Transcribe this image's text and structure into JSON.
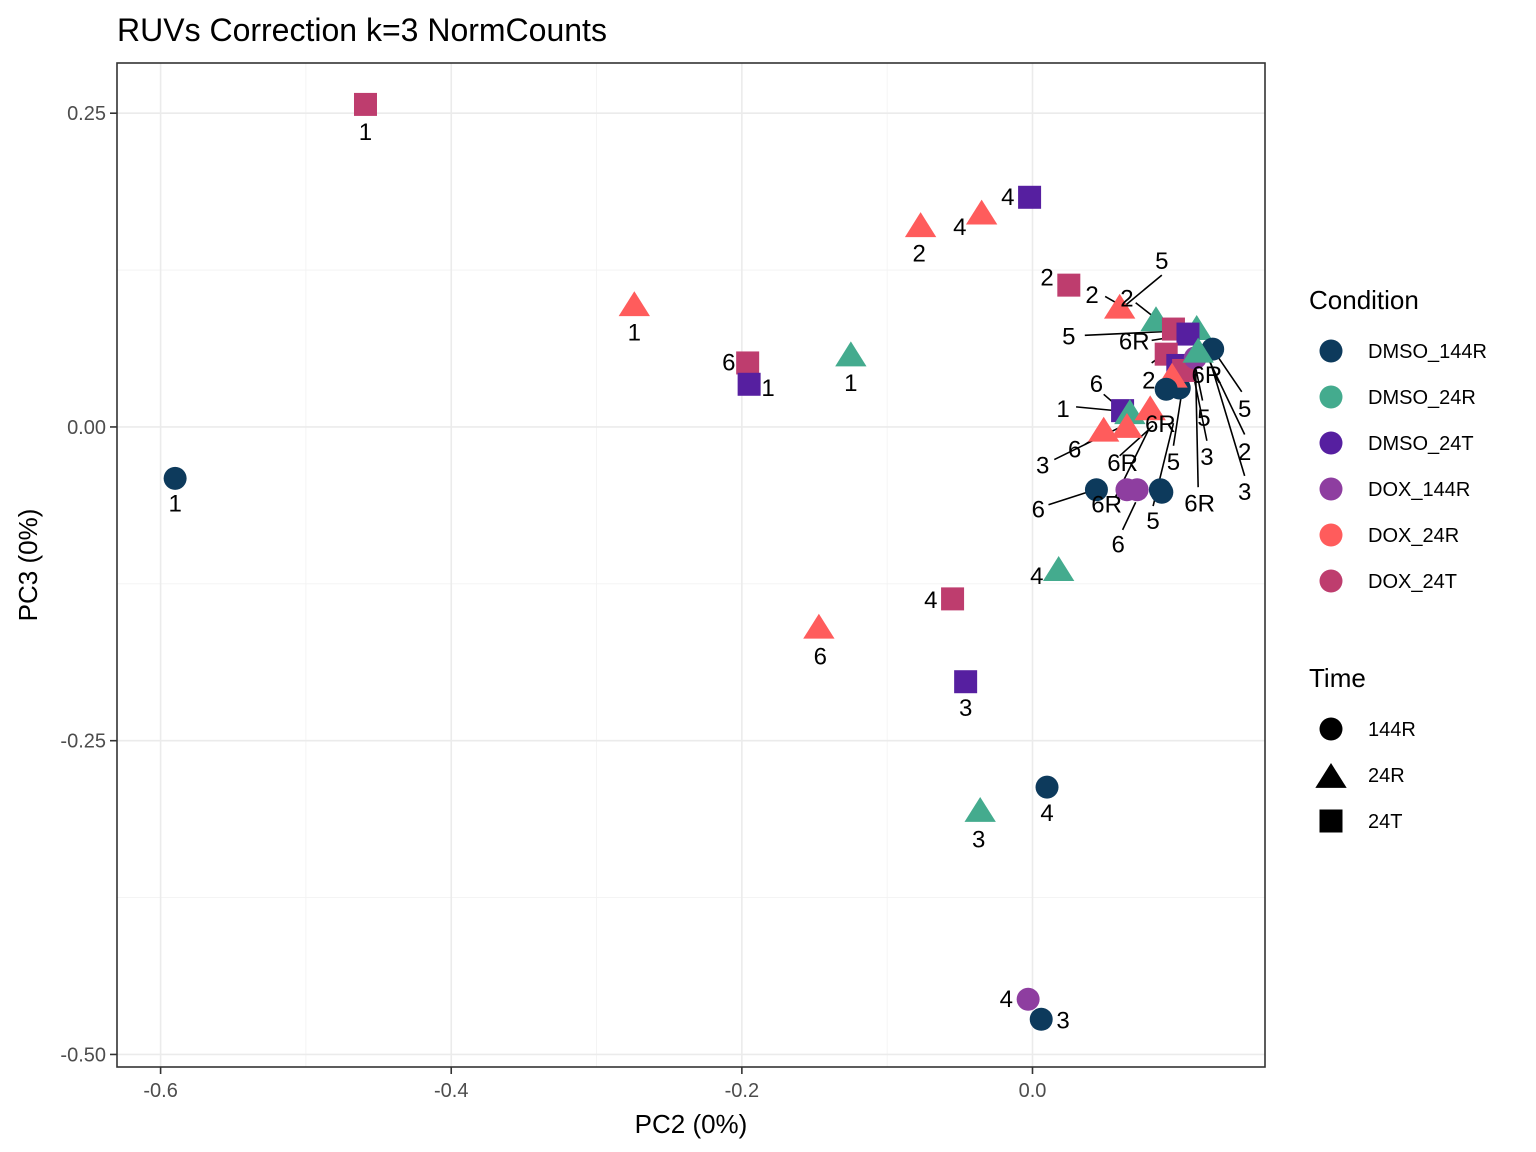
{
  "chart_data": {
    "type": "scatter",
    "title": "RUVs Correction k=3 NormCounts",
    "xlabel": "PC2 (0%)",
    "ylabel": "PC3 (0%)",
    "xlim": [
      -0.63,
      0.16
    ],
    "ylim": [
      -0.51,
      0.29
    ],
    "x_ticks": [
      -0.6,
      -0.4,
      -0.2,
      0.0
    ],
    "x_tick_labels": [
      "-0.6",
      "-0.4",
      "-0.2",
      "0.0"
    ],
    "y_ticks": [
      0.25,
      0.0,
      -0.25,
      -0.5
    ],
    "y_tick_labels": [
      "0.25",
      "0.00",
      "-0.25",
      "-0.50"
    ],
    "grid": true,
    "legend_position": "right",
    "colors": {
      "DMSO_144R": "#0d3a5c",
      "DMSO_24R": "#44ab8e",
      "DMSO_24T": "#561fa0",
      "DOX_144R": "#8e3ea0",
      "DOX_24R": "#ff5c5c",
      "DOX_24T": "#be3d6e"
    },
    "legend_condition": {
      "title": "Condition",
      "items": [
        "DMSO_144R",
        "DMSO_24R",
        "DMSO_24T",
        "DOX_144R",
        "DOX_24R",
        "DOX_24T"
      ]
    },
    "legend_time": {
      "title": "Time",
      "items": [
        {
          "label": "144R",
          "shape": "circle"
        },
        {
          "label": "24R",
          "shape": "triangle"
        },
        {
          "label": "24T",
          "shape": "square"
        }
      ]
    },
    "points": [
      {
        "x": -0.59,
        "y": -0.041,
        "condition": "DMSO_144R",
        "shape": "circle",
        "label": "1",
        "lx": -0.59,
        "ly": -0.06
      },
      {
        "x": -0.459,
        "y": 0.257,
        "condition": "DOX_24T",
        "shape": "square",
        "label": "1",
        "lx": -0.459,
        "ly": 0.236
      },
      {
        "x": -0.274,
        "y": 0.097,
        "condition": "DOX_24R",
        "shape": "triangle",
        "label": "1",
        "lx": -0.274,
        "ly": 0.076
      },
      {
        "x": -0.196,
        "y": 0.051,
        "condition": "DOX_24T",
        "shape": "square",
        "label": "6",
        "lx": -0.209,
        "ly": 0.052
      },
      {
        "x": -0.195,
        "y": 0.034,
        "condition": "DMSO_24T",
        "shape": "square",
        "label": "1",
        "lx": -0.182,
        "ly": 0.032
      },
      {
        "x": -0.125,
        "y": 0.057,
        "condition": "DMSO_24R",
        "shape": "triangle",
        "label": "1",
        "lx": -0.125,
        "ly": 0.036
      },
      {
        "x": -0.077,
        "y": 0.16,
        "condition": "DOX_24R",
        "shape": "triangle",
        "label": "2",
        "lx": -0.078,
        "ly": 0.139
      },
      {
        "x": -0.035,
        "y": 0.17,
        "condition": "DOX_24R",
        "shape": "triangle",
        "label": "4",
        "lx": -0.05,
        "ly": 0.16
      },
      {
        "x": -0.002,
        "y": 0.183,
        "condition": "DMSO_24T",
        "shape": "square",
        "label": "4",
        "lx": -0.017,
        "ly": 0.184
      },
      {
        "x": 0.025,
        "y": 0.113,
        "condition": "DOX_24T",
        "shape": "square",
        "label": "2",
        "lx": 0.01,
        "ly": 0.12
      },
      {
        "x": 0.06,
        "y": 0.095,
        "condition": "DOX_24R",
        "shape": "triangle",
        "label": "2",
        "lx": 0.041,
        "ly": 0.106,
        "line": [
          0.05,
          0.104,
          0.059,
          0.098
        ]
      },
      {
        "x": 0.085,
        "y": 0.085,
        "condition": "DMSO_24R",
        "shape": "triangle",
        "label": "2",
        "lx": 0.065,
        "ly": 0.103,
        "line": [
          0.071,
          0.099,
          0.082,
          0.089
        ]
      },
      {
        "x": 0.097,
        "y": 0.078,
        "condition": "DOX_24T",
        "shape": "square",
        "label": "5",
        "lx": 0.089,
        "ly": 0.133,
        "line": [
          0.089,
          0.121,
          0.064,
          0.097
        ]
      },
      {
        "x": 0.113,
        "y": 0.078,
        "condition": "DMSO_24R",
        "shape": "triangle",
        "label": "5",
        "lx": 0.025,
        "ly": 0.073,
        "line": [
          0.036,
          0.073,
          0.11,
          0.077
        ]
      },
      {
        "x": 0.107,
        "y": 0.074,
        "condition": "DMSO_24T",
        "shape": "square",
        "label": "6R",
        "lx": 0.07,
        "ly": 0.069,
        "line": [
          0.082,
          0.069,
          0.104,
          0.073
        ]
      },
      {
        "x": 0.092,
        "y": 0.058,
        "condition": "DOX_24T",
        "shape": "square",
        "label": "2",
        "lx": 0.08,
        "ly": 0.038,
        "line": [
          0.082,
          0.051,
          0.094,
          0.061
        ]
      },
      {
        "x": 0.1,
        "y": 0.049,
        "condition": "DMSO_24T",
        "shape": "square",
        "label": "6R",
        "lx": 0.12,
        "ly": 0.042,
        "line": [
          0.112,
          0.045,
          0.102,
          0.049
        ]
      },
      {
        "x": 0.124,
        "y": 0.062,
        "condition": "DMSO_144R",
        "shape": "circle",
        "label": "5",
        "lx": 0.146,
        "ly": 0.015,
        "line": [
          0.144,
          0.028,
          0.124,
          0.062
        ]
      },
      {
        "x": 0.101,
        "y": 0.031,
        "condition": "DMSO_144R",
        "shape": "circle",
        "label": "5",
        "lx": 0.118,
        "ly": 0.008,
        "line": [
          0.117,
          0.021,
          0.11,
          0.06
        ]
      },
      {
        "x": 0.062,
        "y": 0.013,
        "condition": "DMSO_24T",
        "shape": "square",
        "label": "6",
        "lx": 0.044,
        "ly": 0.035,
        "line": [
          0.049,
          0.026,
          0.061,
          0.014
        ]
      },
      {
        "x": 0.067,
        "y": 0.011,
        "condition": "DMSO_24R",
        "shape": "triangle",
        "label": "1",
        "lx": 0.021,
        "ly": 0.015,
        "line": [
          0.03,
          0.016,
          0.066,
          0.012
        ]
      },
      {
        "x": 0.081,
        "y": 0.014,
        "condition": "DOX_24R",
        "shape": "triangle",
        "label": "6R",
        "lx": 0.088,
        "ly": 0.003,
        "line": [
          0.084,
          0.008,
          0.081,
          0.012
        ]
      },
      {
        "x": 0.049,
        "y": -0.003,
        "condition": "DOX_24R",
        "shape": "triangle",
        "label": "6",
        "lx": 0.029,
        "ly": -0.017,
        "line": [
          0.036,
          -0.014,
          0.048,
          -0.005
        ]
      },
      {
        "x": 0.065,
        "y": -0.05,
        "condition": "DOX_144R",
        "shape": "circle",
        "label": "6R",
        "lx": 0.062,
        "ly": -0.028,
        "line": [
          0.06,
          -0.023,
          0.083,
          0.001
        ]
      },
      {
        "x": 0.065,
        "y": 0.0,
        "condition": "DOX_24R",
        "shape": "triangle",
        "label": "3",
        "lx": 0.007,
        "ly": -0.03,
        "line": [
          0.015,
          -0.026,
          0.066,
          0.003
        ]
      },
      {
        "x": 0.104,
        "y": 0.045,
        "condition": "DOX_24T",
        "shape": "square",
        "label": "3",
        "lx": 0.12,
        "ly": -0.023,
        "line": [
          0.12,
          -0.011,
          0.108,
          0.057
        ]
      },
      {
        "x": 0.112,
        "y": 0.055,
        "condition": "DOX_144R",
        "shape": "circle",
        "label": "2",
        "lx": 0.146,
        "ly": -0.019,
        "line": [
          0.146,
          -0.006,
          0.117,
          0.064
        ]
      },
      {
        "x": 0.096,
        "y": 0.04,
        "condition": "DOX_24R",
        "shape": "triangle",
        "label": "5",
        "lx": 0.097,
        "ly": -0.027,
        "line": [
          0.097,
          -0.015,
          0.107,
          0.059
        ]
      },
      {
        "x": 0.114,
        "y": 0.06,
        "condition": "DMSO_24R",
        "shape": "triangle",
        "label": "3",
        "lx": 0.146,
        "ly": -0.051,
        "line": [
          0.146,
          -0.039,
          0.12,
          0.061
        ]
      },
      {
        "x": 0.092,
        "y": 0.03,
        "condition": "DMSO_144R",
        "shape": "circle",
        "label": "6R",
        "lx": 0.115,
        "ly": -0.06,
        "line": [
          0.114,
          -0.048,
          0.112,
          0.06
        ]
      },
      {
        "x": 0.088,
        "y": -0.05,
        "condition": "DMSO_144R",
        "shape": "circle",
        "label": "6R",
        "lx": 0.051,
        "ly": -0.061,
        "line": [
          0.057,
          -0.056,
          0.08,
          -0.002
        ]
      },
      {
        "x": 0.089,
        "y": -0.052,
        "condition": "DMSO_144R",
        "shape": "circle",
        "label": "5",
        "lx": 0.083,
        "ly": -0.074,
        "line": [
          0.083,
          -0.063,
          0.097,
          0.003
        ]
      },
      {
        "x": 0.044,
        "y": -0.05,
        "condition": "DMSO_144R",
        "shape": "circle",
        "label": "6",
        "lx": 0.004,
        "ly": -0.065,
        "line": [
          0.011,
          -0.062,
          0.043,
          -0.05
        ]
      },
      {
        "x": 0.072,
        "y": -0.05,
        "condition": "DOX_144R",
        "shape": "circle",
        "label": "6",
        "lx": 0.059,
        "ly": -0.093,
        "line": [
          0.062,
          -0.082,
          0.071,
          -0.06
        ]
      },
      {
        "x": 0.018,
        "y": -0.114,
        "condition": "DMSO_24R",
        "shape": "triangle",
        "label": "4",
        "lx": 0.003,
        "ly": -0.118
      },
      {
        "x": -0.055,
        "y": -0.137,
        "condition": "DOX_24T",
        "shape": "square",
        "label": "4",
        "lx": -0.07,
        "ly": -0.137
      },
      {
        "x": -0.147,
        "y": -0.16,
        "condition": "DOX_24R",
        "shape": "triangle",
        "label": "6",
        "lx": -0.146,
        "ly": -0.182
      },
      {
        "x": -0.046,
        "y": -0.203,
        "condition": "DMSO_24T",
        "shape": "square",
        "label": "3",
        "lx": -0.046,
        "ly": -0.223
      },
      {
        "x": 0.01,
        "y": -0.287,
        "condition": "DMSO_144R",
        "shape": "circle",
        "label": "4",
        "lx": 0.01,
        "ly": -0.307
      },
      {
        "x": -0.036,
        "y": -0.306,
        "condition": "DMSO_24R",
        "shape": "triangle",
        "label": "3",
        "lx": -0.037,
        "ly": -0.328
      },
      {
        "x": -0.003,
        "y": -0.456,
        "condition": "DOX_144R",
        "shape": "circle",
        "label": "4",
        "lx": -0.018,
        "ly": -0.455
      },
      {
        "x": 0.006,
        "y": -0.472,
        "condition": "DMSO_144R",
        "shape": "circle",
        "label": "3",
        "lx": 0.021,
        "ly": -0.472
      }
    ]
  }
}
